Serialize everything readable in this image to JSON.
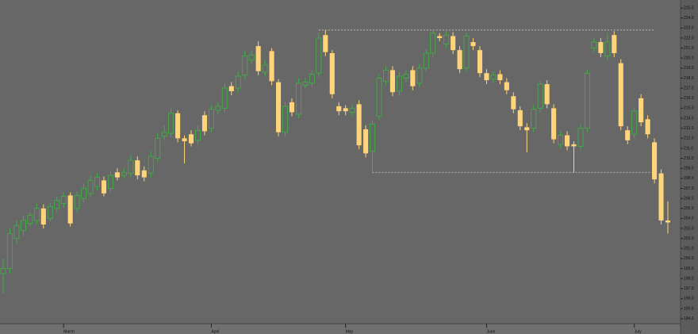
{
  "chart_data": {
    "type": "candlestick",
    "categories": [
      null,
      null,
      null,
      null,
      null,
      null,
      null,
      null,
      null,
      "March",
      null,
      null,
      null,
      null,
      null,
      null,
      null,
      null,
      null,
      null,
      null,
      null,
      null,
      null,
      null,
      null,
      null,
      null,
      null,
      null,
      null,
      "April",
      null,
      null,
      null,
      null,
      null,
      null,
      null,
      null,
      null,
      null,
      null,
      null,
      null,
      null,
      null,
      null,
      null,
      null,
      null,
      "May",
      null,
      null,
      null,
      null,
      null,
      null,
      null,
      null,
      null,
      null,
      null,
      null,
      null,
      null,
      null,
      null,
      null,
      null,
      null,
      null,
      "June",
      null,
      null,
      null,
      null,
      null,
      null,
      null,
      null,
      null,
      null,
      null,
      null,
      null,
      null,
      null,
      null,
      null,
      null,
      null,
      null,
      null,
      "July",
      null,
      null,
      null,
      null,
      null
    ],
    "open": [
      198.5,
      199,
      202,
      202.8,
      203.5,
      203.8,
      205,
      204,
      205,
      205.5,
      206.3,
      205,
      206,
      206.5,
      207.2,
      207.8,
      207,
      208.6,
      208.3,
      208.5,
      209.8,
      208.8,
      208.5,
      210,
      212.2,
      212.5,
      214.5,
      212,
      212.4,
      211.8,
      214.3,
      213,
      214.8,
      215,
      217.2,
      217,
      218.3,
      219.8,
      221.2,
      218.6,
      220.7,
      217.6,
      212.6,
      215.6,
      214.4,
      217.3,
      217.5,
      218.5,
      222.3,
      220.5,
      215.2,
      215,
      214.6,
      215.4,
      212.9,
      210.7,
      214.2,
      217.7,
      218.8,
      216.7,
      218,
      218.8,
      217.5,
      219,
      220.5,
      222.2,
      221.4,
      222.2,
      220.8,
      219,
      221.6,
      220.8,
      218.5,
      217.9,
      218.4,
      217.6,
      216.2,
      214.8,
      213.1,
      213,
      215,
      217.4,
      215,
      211.4,
      212.3,
      211.4,
      211.2,
      213,
      221,
      221.6,
      220.2,
      222.3,
      219.5,
      212.8,
      212.4,
      216,
      213.9,
      211.6,
      208.5,
      203.8
    ],
    "high": [
      200,
      203,
      203.8,
      204.3,
      204.6,
      205.5,
      205.4,
      205.6,
      206.2,
      206.6,
      206.6,
      206.7,
      207.5,
      208.3,
      208.5,
      208.2,
      208.7,
      209,
      209,
      210.3,
      210.2,
      209.2,
      210.7,
      212.5,
      213.3,
      215,
      214.8,
      212.3,
      212.8,
      213.3,
      214.7,
      215.3,
      215.6,
      217.5,
      217.6,
      218.7,
      220.7,
      220.8,
      221.7,
      219.8,
      221,
      217.9,
      215.6,
      216,
      218,
      218,
      218.8,
      222.5,
      222.8,
      220.8,
      215.6,
      215.3,
      215.4,
      215.8,
      213.3,
      213.8,
      218.4,
      219.2,
      219.2,
      218.6,
      218.8,
      219.2,
      219.4,
      220.9,
      222.9,
      222.5,
      222.7,
      222.6,
      221.2,
      222.6,
      222,
      221.2,
      218.9,
      218.7,
      218.8,
      218,
      216.6,
      215.2,
      213.5,
      215.3,
      217.8,
      217.8,
      215.4,
      212.7,
      212.7,
      211.7,
      213.4,
      218.9,
      222,
      222,
      222.5,
      222.7,
      219.9,
      213.2,
      215.1,
      216.4,
      214.3,
      212,
      208.9,
      205.7
    ],
    "low": [
      196.5,
      198.5,
      201.5,
      202.3,
      203.2,
      203.4,
      203,
      203.7,
      204.6,
      205.1,
      203.2,
      204.6,
      205.6,
      206.1,
      206.8,
      206.2,
      206.6,
      207.8,
      208,
      208.1,
      207.9,
      207.7,
      208.1,
      209.6,
      211.8,
      212.1,
      211.6,
      209.5,
      211.2,
      211.4,
      212.3,
      212.6,
      214.4,
      214.6,
      216.3,
      216.6,
      217.9,
      219.4,
      218.3,
      218.2,
      217.3,
      212.2,
      212.2,
      214.2,
      214,
      217,
      217.1,
      218.1,
      220.2,
      216,
      214.3,
      214.3,
      214.2,
      210.9,
      210.1,
      208.5,
      213.8,
      217.3,
      216.2,
      216.3,
      217.6,
      216.8,
      217.1,
      218.6,
      220.1,
      221.7,
      221,
      220.4,
      218.5,
      218.6,
      220.8,
      218.1,
      217.4,
      217.5,
      217.4,
      216.4,
      214.5,
      212.8,
      210.6,
      212.6,
      214.6,
      215,
      211.5,
      211,
      210.8,
      208.6,
      210.8,
      212.6,
      220.6,
      220.1,
      219.8,
      220.1,
      212.8,
      211.4,
      212,
      213.2,
      212,
      207.5,
      203.4,
      202.5
    ],
    "close": [
      199,
      202.5,
      203.3,
      203.8,
      204.3,
      205,
      203.4,
      205.2,
      205.8,
      206.2,
      203.5,
      206.3,
      207,
      207.8,
      208.1,
      206.5,
      208.3,
      208.1,
      208.6,
      209.8,
      208.3,
      208.1,
      210.2,
      212,
      212.6,
      214.5,
      212,
      211.7,
      211.5,
      212.8,
      212.7,
      214.9,
      215.2,
      217,
      216.7,
      218.2,
      220.2,
      220.3,
      218.7,
      219.3,
      217.7,
      212.6,
      215.2,
      214.6,
      217.5,
      217.6,
      218.4,
      222,
      220.6,
      216.4,
      214.7,
      214.7,
      215,
      211.3,
      210.5,
      213.4,
      218,
      218.8,
      216.6,
      218.2,
      218.4,
      217.2,
      219,
      220.5,
      222.5,
      222,
      222.3,
      220.8,
      218.9,
      222.2,
      221.2,
      218.5,
      217.8,
      218.3,
      217.8,
      216.8,
      214.9,
      213.2,
      212.8,
      214.9,
      217.4,
      215.4,
      211.9,
      212.3,
      211.2,
      211.2,
      213,
      218.5,
      221.6,
      220.5,
      221.6,
      220.5,
      213.2,
      211.8,
      214.7,
      213.6,
      212.4,
      207.9,
      203.8,
      203.6
    ],
    "up_color": "#3fae45",
    "down_color": "#ffd47a",
    "reference_lines": [
      {
        "value": 222.8,
        "from": 47,
        "to": 97
      },
      {
        "value": 208.6,
        "from": 55,
        "to": 97
      }
    ],
    "ylim": [
      193.5,
      225.8
    ],
    "yticks": [
      {
        "value": 194,
        "label": "194.0"
      },
      {
        "value": 195,
        "label": "195.0"
      },
      {
        "value": 196,
        "label": "196.0"
      },
      {
        "value": 197,
        "label": "197.0"
      },
      {
        "value": 198,
        "label": "198.0"
      },
      {
        "value": 199,
        "label": "199.0"
      },
      {
        "value": 200,
        "label": "200.0"
      },
      {
        "value": 201,
        "label": "201.0"
      },
      {
        "value": 202,
        "label": "202.0"
      },
      {
        "value": 203,
        "label": "203.0"
      },
      {
        "value": 204,
        "label": "204.0"
      },
      {
        "value": 205,
        "label": "205.0"
      },
      {
        "value": 206,
        "label": "206.0"
      },
      {
        "value": 207,
        "label": "207.0"
      },
      {
        "value": 208,
        "label": "208.0"
      },
      {
        "value": 209,
        "label": "209.0"
      },
      {
        "value": 210,
        "label": "210.0"
      },
      {
        "value": 211,
        "label": "211.0"
      },
      {
        "value": 212,
        "label": "212.0"
      },
      {
        "value": 213,
        "label": "213.0"
      },
      {
        "value": 214,
        "label": "214.0"
      },
      {
        "value": 215,
        "label": "215.0"
      },
      {
        "value": 216,
        "label": "216.0"
      },
      {
        "value": 217,
        "label": "217.0"
      },
      {
        "value": 218,
        "label": "218.0"
      },
      {
        "value": 219,
        "label": "219.0"
      },
      {
        "value": 220,
        "label": "220.0"
      },
      {
        "value": 221,
        "label": "221.0"
      },
      {
        "value": 222,
        "label": "222.0"
      },
      {
        "value": 223,
        "label": "223.0"
      },
      {
        "value": 224,
        "label": "224.0"
      },
      {
        "value": 225,
        "label": "225.0"
      }
    ],
    "grid": false
  }
}
